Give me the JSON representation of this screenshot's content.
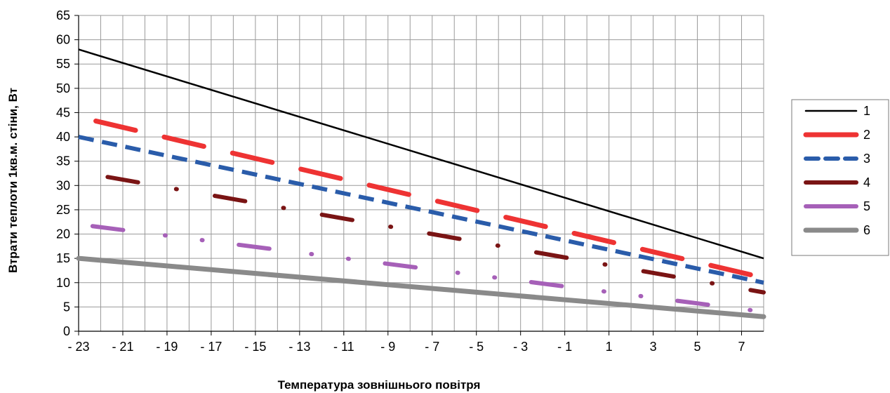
{
  "chart_data": {
    "type": "line",
    "title": "",
    "xlabel": "Температура зовнішнього повітря",
    "ylabel": "Втрати теплоти 1кв.м. стіни, Вт",
    "xlim": [
      -23,
      8
    ],
    "ylim": [
      0,
      65
    ],
    "yticks": [
      0,
      5,
      10,
      15,
      20,
      25,
      30,
      35,
      40,
      45,
      50,
      55,
      60,
      65
    ],
    "xticks": [
      -23,
      -21,
      -19,
      -17,
      -15,
      -13,
      -11,
      -9,
      -7,
      -5,
      -3,
      -1,
      1,
      3,
      5,
      7
    ],
    "xtick_labels": [
      "- 23",
      "- 21",
      "- 19",
      "- 17",
      "- 15",
      "- 13",
      "- 11",
      "- 9",
      "- 7",
      "- 5",
      "- 3",
      "- 1",
      "1",
      "3",
      "5",
      "7"
    ],
    "grid": true,
    "legend_position": "right",
    "series": [
      {
        "name": "1",
        "color": "#000000",
        "style": "solid",
        "x": [
          -23,
          8
        ],
        "y": [
          58,
          15
        ]
      },
      {
        "name": "2",
        "color": "#ee3333",
        "style": "long-dash",
        "x": [
          -22.9,
          8
        ],
        "y": [
          44,
          11
        ]
      },
      {
        "name": "3",
        "color": "#2a5caa",
        "style": "dash",
        "x": [
          -23,
          8
        ],
        "y": [
          40,
          10
        ]
      },
      {
        "name": "4",
        "color": "#7a1414",
        "style": "dash-dot",
        "x": [
          -22,
          8
        ],
        "y": [
          32,
          8
        ]
      },
      {
        "name": "5",
        "color": "#a660b8",
        "style": "dash-dot-dot",
        "x": [
          -23,
          8
        ],
        "y": [
          22,
          4
        ]
      },
      {
        "name": "6",
        "color": "#8a8a8a",
        "style": "solid-thick",
        "x": [
          -23,
          8
        ],
        "y": [
          15,
          3
        ]
      }
    ]
  }
}
